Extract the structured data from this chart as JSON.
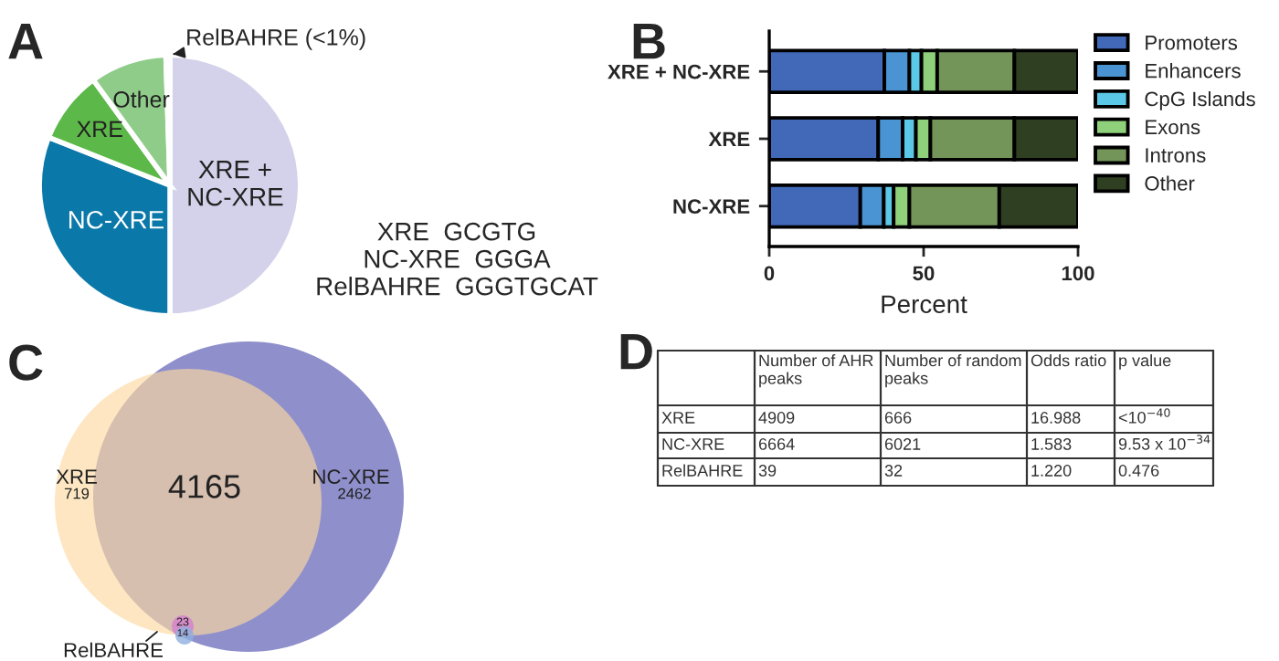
{
  "chart_data": [
    {
      "type": "pie",
      "title": "A",
      "categories": [
        "XRE +\nNC-XRE",
        "NC-XRE",
        "XRE",
        "Other",
        "RelBAHRE (<1%)"
      ],
      "values": [
        50,
        31,
        9,
        9.5,
        0.5
      ],
      "colors": [
        "#d4d2ea",
        "#0a78a8",
        "#5cb848",
        "#8fcc8a",
        "#c8c8c8"
      ],
      "annotations": [
        "XRE  GCGTG",
        "NC-XRE  GGGA",
        "RelBAHRE  GGGTGCAT"
      ]
    },
    {
      "type": "bar",
      "title": "B",
      "orientation": "horizontal",
      "stacked": true,
      "categories": [
        "XRE + NC-XRE",
        "XRE",
        "NC-XRE"
      ],
      "xlabel": "Percent",
      "xlim": [
        0,
        100
      ],
      "xticks": [
        0,
        50,
        100
      ],
      "legend": "right",
      "grid": false,
      "series": [
        {
          "name": "Promoters",
          "color": "#4169b8",
          "values": [
            37.3,
            35.3,
            29.5
          ]
        },
        {
          "name": "Enhancers",
          "color": "#4a94d4",
          "values": [
            8.1,
            7.9,
            7.6
          ]
        },
        {
          "name": "CpG Islands",
          "color": "#5bc8e8",
          "values": [
            3.9,
            4.3,
            3.2
          ]
        },
        {
          "name": "Exons",
          "color": "#8fd07a",
          "values": [
            5.1,
            4.7,
            5.1
          ]
        },
        {
          "name": "Introns",
          "color": "#74955a",
          "values": [
            25.0,
            27.2,
            29.1
          ]
        },
        {
          "name": "Other",
          "color": "#2f3f22",
          "values": [
            20.6,
            20.6,
            25.5
          ]
        }
      ]
    },
    {
      "type": "other",
      "title": "C",
      "annotations": [
        "XRE",
        "719",
        "4165",
        "NC-XRE",
        "2462",
        "23",
        "14",
        "RelBAHRE"
      ]
    },
    {
      "type": "other",
      "title": "D",
      "categories": [
        null,
        "Number of AHR\npeaks",
        "Number of random\npeaks",
        "Odds ratio",
        "p value"
      ],
      "y_categories": [
        "XRE",
        "NC-XRE",
        "RelBAHRE"
      ],
      "cell_labels": [
        [
          "4909",
          "666",
          "16.988",
          "<10$^{−40}$"
        ],
        [
          "6664",
          "6021",
          "1.583",
          "9.53 x 10$^{−34}$"
        ],
        [
          "39",
          "32",
          "1.220",
          "0.476"
        ]
      ]
    }
  ]
}
